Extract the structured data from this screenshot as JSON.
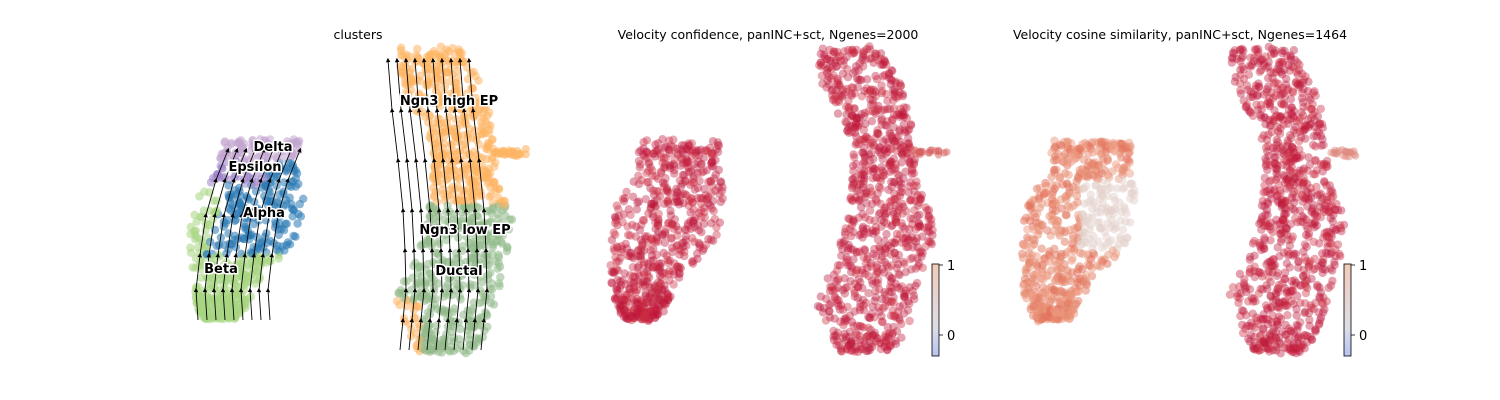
{
  "chart_data": [
    {
      "type": "scatter",
      "title": "clusters",
      "subtype": "umap-embedding-with-velocity-streamlines",
      "clusters": [
        {
          "name": "Delta",
          "color": "#c2a5cf"
        },
        {
          "name": "Epsilon",
          "color": "#9e83c8"
        },
        {
          "name": "Alpha",
          "color": "#2878b5"
        },
        {
          "name": "Beta",
          "color": "#a8d581"
        },
        {
          "name": "Ngn3 high EP",
          "color": "#fdb462"
        },
        {
          "name": "Ngn3 low EP",
          "color": "#92b98a"
        },
        {
          "name": "Ductal",
          "color": "#8fbc8f"
        }
      ],
      "streamlines": true,
      "axes_visible": false
    },
    {
      "type": "scatter",
      "title": "Velocity confidence, panINC+sct, Ngenes=2000",
      "subtype": "umap-embedding-colored-by-value",
      "colormap": "coolwarm",
      "colorbar": {
        "ticks": [
          "1",
          "0"
        ]
      },
      "axes_visible": false
    },
    {
      "type": "scatter",
      "title": "Velocity cosine similarity, panINC+sct, Ngenes=1464",
      "subtype": "umap-embedding-colored-by-value",
      "colormap": "coolwarm",
      "colorbar": {
        "ticks": [
          "1",
          "0"
        ]
      },
      "axes_visible": false
    }
  ]
}
